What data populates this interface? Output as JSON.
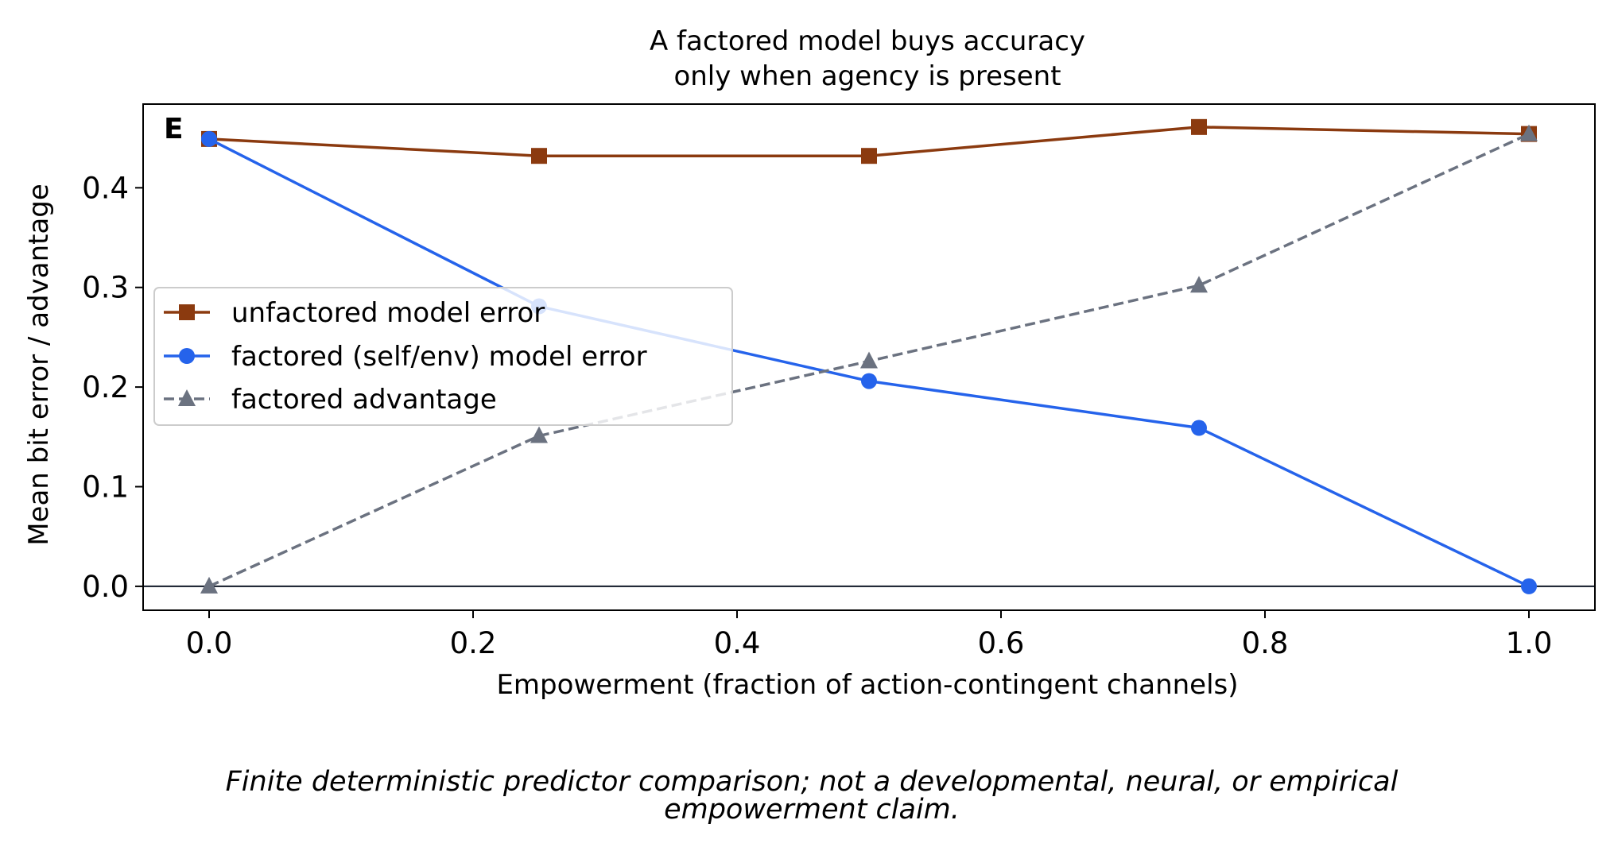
{
  "chart_data": {
    "type": "line",
    "title_lines": [
      "A factored model buys accuracy",
      "only when agency is present"
    ],
    "panel_letter": "E",
    "xlabel": "Empowerment (fraction of action-contingent channels)",
    "ylabel": "Mean bit error / advantage",
    "xlim": [
      -0.05,
      1.05
    ],
    "ylim": [
      -0.024,
      0.484
    ],
    "xticks": [
      0.0,
      0.2,
      0.4,
      0.6,
      0.8,
      1.0
    ],
    "xtick_labels": [
      "0.0",
      "0.2",
      "0.4",
      "0.6",
      "0.8",
      "1.0"
    ],
    "yticks": [
      0.0,
      0.1,
      0.2,
      0.3,
      0.4
    ],
    "ytick_labels": [
      "0.0",
      "0.1",
      "0.2",
      "0.3",
      "0.4"
    ],
    "grid": false,
    "zero_line": true,
    "legend_position": "center-left",
    "x": [
      0.0,
      0.25,
      0.5,
      0.75,
      1.0
    ],
    "series": [
      {
        "name": "unfactored model error",
        "marker": "square",
        "dash": "solid",
        "color": "#8b3a0f",
        "values": [
          0.449,
          0.432,
          0.432,
          0.461,
          0.454
        ]
      },
      {
        "name": "factored (self/env) model error",
        "marker": "circle",
        "dash": "solid",
        "color": "#2563eb",
        "values": [
          0.449,
          0.281,
          0.206,
          0.159,
          0.0
        ]
      },
      {
        "name": "factored advantage",
        "marker": "triangle",
        "dash": "dashed",
        "color": "#6b7280",
        "values": [
          0.0,
          0.151,
          0.226,
          0.302,
          0.454
        ]
      }
    ]
  },
  "caption_lines": [
    "Finite deterministic predictor comparison; not a developmental, neural, or empirical",
    "empowerment claim."
  ]
}
